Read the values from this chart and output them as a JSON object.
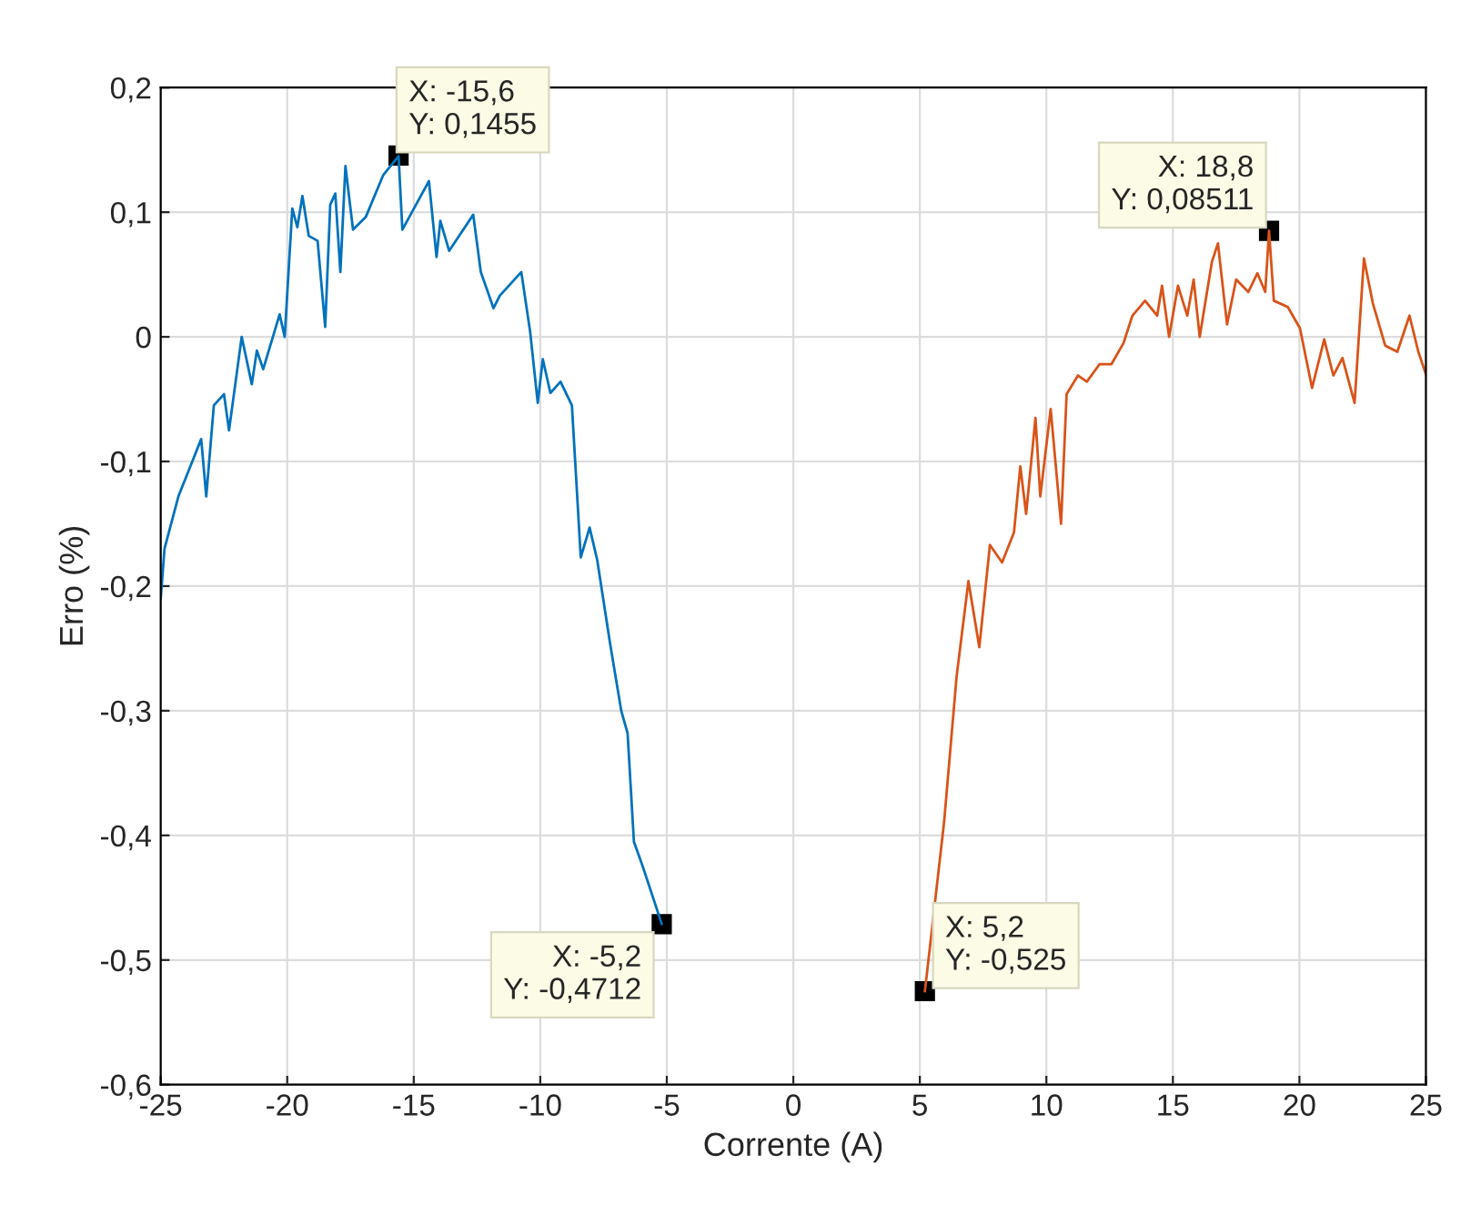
{
  "chart_data": {
    "type": "line",
    "xlabel": "Corrente (A)",
    "ylabel": "Erro (%)",
    "xlim": [
      -25,
      25
    ],
    "xticks": [
      -25,
      -20,
      -15,
      -10,
      -5,
      0,
      5,
      10,
      15,
      20,
      25
    ],
    "ylim": [
      -0.6,
      0.2
    ],
    "yticks": [
      {
        "value": -0.6,
        "label": "-0,6"
      },
      {
        "value": -0.5,
        "label": "-0,5"
      },
      {
        "value": -0.4,
        "label": "-0,4"
      },
      {
        "value": -0.3,
        "label": "-0,3"
      },
      {
        "value": -0.2,
        "label": "-0,2"
      },
      {
        "value": -0.1,
        "label": "-0,1"
      },
      {
        "value": 0,
        "label": "0"
      },
      {
        "value": 0.1,
        "label": "0,1"
      },
      {
        "value": 0.2,
        "label": "0,2"
      }
    ],
    "grid": true,
    "legend": false,
    "marker": "none",
    "line_style": "solid",
    "series": [
      {
        "color": "#0072bd",
        "x": [
          -25,
          -24.85,
          -24.3,
          -23.4,
          -23.2,
          -22.9,
          -22.5,
          -22.3,
          -21.8,
          -21.4,
          -21.2,
          -20.95,
          -20.3,
          -20.1,
          -19.8,
          -19.6,
          -19.4,
          -19.15,
          -18.8,
          -18.5,
          -18.3,
          -18.1,
          -17.9,
          -17.7,
          -17.4,
          -16.9,
          -16.2,
          -15.6,
          -15.45,
          -14.4,
          -14.1,
          -13.95,
          -13.6,
          -12.65,
          -12.35,
          -11.85,
          -11.6,
          -10.75,
          -10.4,
          -10.1,
          -9.9,
          -9.6,
          -9.2,
          -8.75,
          -8.4,
          -8.05,
          -7.75,
          -7.25,
          -6.8,
          -6.55,
          -6.3,
          -5.95,
          -5.2
        ],
        "values": [
          -0.21,
          -0.17,
          -0.128,
          -0.082,
          -0.128,
          -0.055,
          -0.046,
          -0.075,
          0.0,
          -0.038,
          -0.011,
          -0.026,
          0.018,
          0.0,
          0.103,
          0.088,
          0.113,
          0.081,
          0.077,
          0.008,
          0.106,
          0.115,
          0.052,
          0.137,
          0.086,
          0.096,
          0.13,
          0.145,
          0.086,
          0.125,
          0.064,
          0.093,
          0.069,
          0.098,
          0.052,
          0.023,
          0.033,
          0.052,
          0.004,
          -0.053,
          -0.018,
          -0.045,
          -0.036,
          -0.055,
          -0.177,
          -0.153,
          -0.179,
          -0.245,
          -0.3,
          -0.318,
          -0.405,
          -0.425,
          -0.471
        ]
      },
      {
        "color": "#d95319",
        "x": [
          5.2,
          5.96,
          6.45,
          6.92,
          7.35,
          7.77,
          8.25,
          8.72,
          8.97,
          9.2,
          9.57,
          9.76,
          10.17,
          10.58,
          10.8,
          11.25,
          11.6,
          12.1,
          12.57,
          13.05,
          13.4,
          13.9,
          14.38,
          14.57,
          14.85,
          15.2,
          15.57,
          15.82,
          16.06,
          16.54,
          16.78,
          17.14,
          17.5,
          17.98,
          18.34,
          18.65,
          18.8,
          18.99,
          19.54,
          20.02,
          20.5,
          20.98,
          21.34,
          21.7,
          22.18,
          22.55,
          22.9,
          23.39,
          23.87,
          24.35,
          24.7,
          25
        ],
        "values": [
          -0.525,
          -0.389,
          -0.273,
          -0.196,
          -0.249,
          -0.167,
          -0.181,
          -0.157,
          -0.104,
          -0.142,
          -0.065,
          -0.128,
          -0.058,
          -0.15,
          -0.046,
          -0.031,
          -0.036,
          -0.022,
          -0.022,
          -0.005,
          0.017,
          0.029,
          0.017,
          0.041,
          0.0,
          0.041,
          0.017,
          0.046,
          0.0,
          0.06,
          0.075,
          0.01,
          0.046,
          0.036,
          0.051,
          0.036,
          0.085,
          0.029,
          0.024,
          0.007,
          -0.041,
          -0.002,
          -0.031,
          -0.017,
          -0.053,
          0.063,
          0.027,
          -0.007,
          -0.012,
          0.017,
          -0.012,
          -0.03
        ]
      }
    ],
    "annotations": [
      {
        "text": "X: -15,6\nY: 0,1455",
        "x": -15.6,
        "y": 0.1455
      },
      {
        "text": "X: 18,8\nY: 0,08511",
        "x": 18.8,
        "y": 0.08511
      },
      {
        "text": "X: -5,2\nY: -0,4712",
        "x": -5.2,
        "y": -0.4712
      },
      {
        "text": "X: 5,2\nY: -0,525",
        "x": 5.2,
        "y": -0.525
      }
    ]
  }
}
